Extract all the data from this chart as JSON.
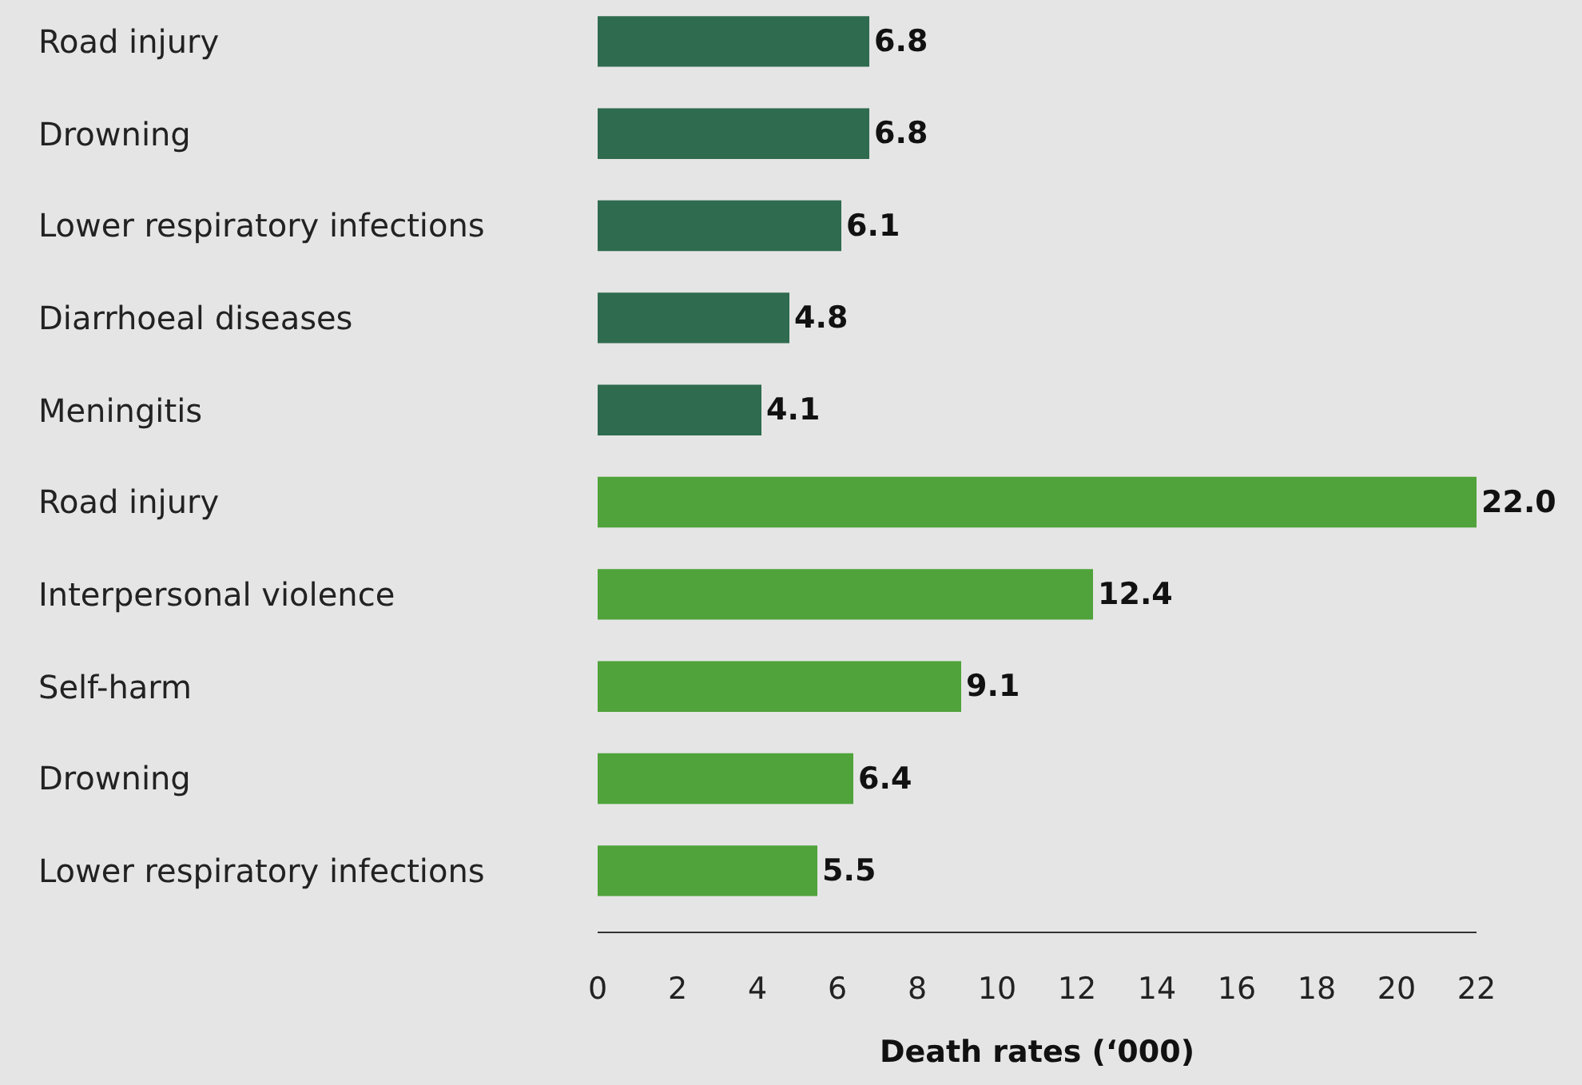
{
  "chart_data": {
    "type": "bar",
    "orientation": "horizontal",
    "xlabel": "Death rates (‘000)",
    "categories": [
      "Road injury",
      "Drowning",
      "Lower respiratory infections",
      "Diarrhoeal diseases",
      "Meningitis",
      "Road injury",
      "Interpersonal violence",
      "Self-harm",
      "Drowning",
      "Lower respiratory infections"
    ],
    "values": [
      6.8,
      6.8,
      6.1,
      4.8,
      4.1,
      22.0,
      12.4,
      9.1,
      6.4,
      5.5
    ],
    "value_labels": [
      "6.8",
      "6.8",
      "6.1",
      "4.8",
      "4.1",
      "22.0",
      "12.4",
      "9.1",
      "6.4",
      "5.5"
    ],
    "colors": [
      "#2f6b4f",
      "#2f6b4f",
      "#2f6b4f",
      "#2f6b4f",
      "#2f6b4f",
      "#4fa33a",
      "#4fa33a",
      "#4fa33a",
      "#4fa33a",
      "#4fa33a"
    ],
    "xlim": [
      0,
      22
    ],
    "xticks": [
      0,
      2,
      4,
      6,
      8,
      10,
      12,
      14,
      16,
      18,
      20,
      22
    ]
  }
}
